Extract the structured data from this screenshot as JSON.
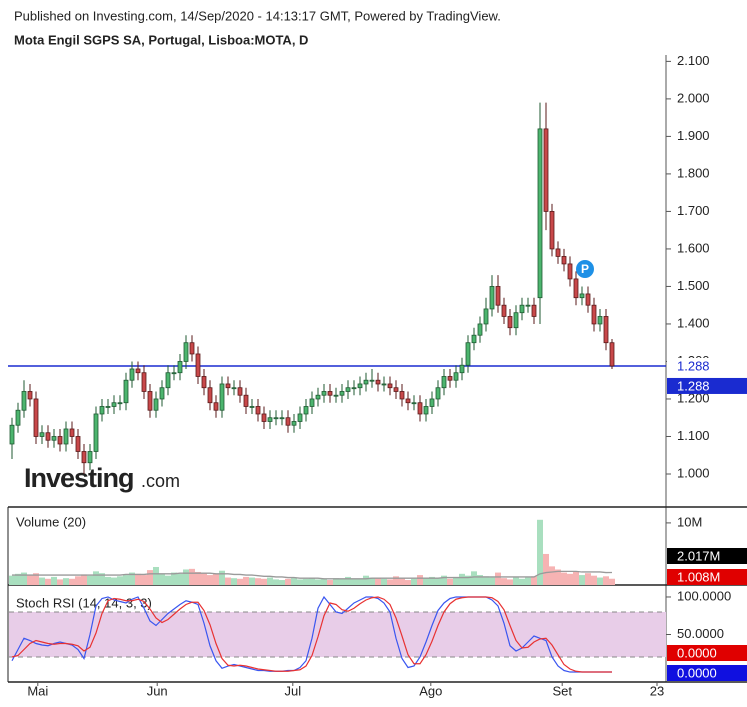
{
  "header": {
    "published": "Published on Investing.com, 14/Sep/2020 - 14:13:17 GMT, Powered by TradingView."
  },
  "logo": {
    "brand": "Investing",
    "suffix": ".com"
  },
  "chart_data": [
    {
      "type": "candlestick",
      "title": "Mota Engil SGPS SA, Portugal, Lisboa:MOTA, D",
      "event_marker": "P",
      "colors": {
        "up": "#4cb56e",
        "up_edge": "#1f5a32",
        "down": "#c8484a",
        "down_edge": "#5a1a1a",
        "price_line": "#1a2bd0"
      },
      "ylim": [
        0.912,
        2.117
      ],
      "yticks": [
        {
          "value": 1,
          "label": "1.000"
        },
        {
          "value": 1.1,
          "label": "1.100"
        },
        {
          "value": 1.2,
          "label": "1.200"
        },
        {
          "value": 1.3,
          "label": "1.300"
        },
        {
          "value": 1.4,
          "label": "1.400"
        },
        {
          "value": 1.5,
          "label": "1.500"
        },
        {
          "value": 1.6,
          "label": "1.600"
        },
        {
          "value": 1.7,
          "label": "1.700"
        },
        {
          "value": 1.8,
          "label": "1.800"
        },
        {
          "value": 1.9,
          "label": "1.900"
        },
        {
          "value": 2,
          "label": "2.000"
        },
        {
          "value": 2.1,
          "label": "2.100"
        }
      ],
      "price_line": 1.288,
      "open": [
        1.08,
        1.13,
        1.17,
        1.22,
        1.2,
        1.1,
        1.11,
        1.09,
        1.1,
        1.08,
        1.12,
        1.1,
        1.06,
        1.03,
        1.06,
        1.16,
        1.18,
        1.18,
        1.19,
        1.19,
        1.25,
        1.28,
        1.27,
        1.22,
        1.17,
        1.2,
        1.23,
        1.27,
        1.27,
        1.3,
        1.35,
        1.32,
        1.26,
        1.23,
        1.19,
        1.17,
        1.24,
        1.23,
        1.23,
        1.21,
        1.18,
        1.18,
        1.16,
        1.14,
        1.15,
        1.15,
        1.15,
        1.13,
        1.14,
        1.16,
        1.18,
        1.2,
        1.21,
        1.22,
        1.21,
        1.21,
        1.22,
        1.23,
        1.23,
        1.24,
        1.25,
        1.25,
        1.24,
        1.24,
        1.23,
        1.22,
        1.2,
        1.19,
        1.19,
        1.16,
        1.18,
        1.2,
        1.23,
        1.26,
        1.25,
        1.27,
        1.29,
        1.35,
        1.37,
        1.4,
        1.44,
        1.5,
        1.45,
        1.42,
        1.39,
        1.43,
        1.45,
        1.45,
        1.47,
        1.92,
        1.7,
        1.6,
        1.58,
        1.56,
        1.52,
        1.47,
        1.48,
        1.45,
        1.4,
        1.42,
        1.35
      ],
      "high": [
        1.15,
        1.19,
        1.25,
        1.24,
        1.22,
        1.13,
        1.13,
        1.12,
        1.12,
        1.14,
        1.14,
        1.12,
        1.08,
        1.08,
        1.18,
        1.2,
        1.2,
        1.21,
        1.21,
        1.27,
        1.3,
        1.3,
        1.29,
        1.24,
        1.22,
        1.25,
        1.29,
        1.29,
        1.32,
        1.37,
        1.37,
        1.34,
        1.28,
        1.25,
        1.21,
        1.26,
        1.26,
        1.25,
        1.25,
        1.23,
        1.2,
        1.2,
        1.18,
        1.17,
        1.17,
        1.17,
        1.17,
        1.16,
        1.18,
        1.2,
        1.22,
        1.23,
        1.24,
        1.24,
        1.23,
        1.24,
        1.25,
        1.25,
        1.26,
        1.27,
        1.28,
        1.27,
        1.26,
        1.26,
        1.25,
        1.24,
        1.22,
        1.21,
        1.21,
        1.2,
        1.22,
        1.25,
        1.28,
        1.28,
        1.29,
        1.31,
        1.37,
        1.39,
        1.42,
        1.47,
        1.53,
        1.53,
        1.47,
        1.44,
        1.45,
        1.47,
        1.47,
        1.47,
        1.99,
        1.99,
        1.72,
        1.62,
        1.6,
        1.58,
        1.54,
        1.5,
        1.5,
        1.47,
        1.44,
        1.44,
        1.36
      ],
      "low": [
        1.04,
        1.11,
        1.15,
        1.18,
        1.08,
        1.08,
        1.07,
        1.07,
        1.06,
        1.06,
        1.08,
        1.04,
        1.0,
        1.01,
        1.04,
        1.14,
        1.16,
        1.16,
        1.17,
        1.17,
        1.23,
        1.25,
        1.2,
        1.15,
        1.15,
        1.18,
        1.21,
        1.25,
        1.25,
        1.28,
        1.3,
        1.24,
        1.21,
        1.17,
        1.15,
        1.15,
        1.21,
        1.21,
        1.19,
        1.16,
        1.16,
        1.14,
        1.12,
        1.12,
        1.13,
        1.13,
        1.11,
        1.11,
        1.12,
        1.14,
        1.16,
        1.18,
        1.19,
        1.19,
        1.19,
        1.19,
        1.2,
        1.21,
        1.21,
        1.22,
        1.23,
        1.22,
        1.22,
        1.21,
        1.2,
        1.18,
        1.17,
        1.17,
        1.14,
        1.14,
        1.16,
        1.18,
        1.21,
        1.23,
        1.23,
        1.25,
        1.27,
        1.33,
        1.35,
        1.38,
        1.42,
        1.43,
        1.4,
        1.37,
        1.37,
        1.41,
        1.43,
        1.4,
        1.4,
        1.65,
        1.58,
        1.56,
        1.54,
        1.5,
        1.45,
        1.45,
        1.43,
        1.38,
        1.38,
        1.33,
        1.28
      ],
      "close": [
        1.13,
        1.17,
        1.22,
        1.2,
        1.1,
        1.11,
        1.09,
        1.1,
        1.08,
        1.12,
        1.1,
        1.06,
        1.03,
        1.06,
        1.16,
        1.18,
        1.18,
        1.19,
        1.19,
        1.25,
        1.28,
        1.27,
        1.22,
        1.17,
        1.2,
        1.23,
        1.27,
        1.27,
        1.3,
        1.35,
        1.32,
        1.26,
        1.23,
        1.19,
        1.17,
        1.24,
        1.23,
        1.23,
        1.21,
        1.18,
        1.18,
        1.16,
        1.14,
        1.15,
        1.15,
        1.15,
        1.13,
        1.14,
        1.16,
        1.18,
        1.2,
        1.21,
        1.22,
        1.21,
        1.21,
        1.22,
        1.23,
        1.23,
        1.24,
        1.25,
        1.25,
        1.24,
        1.24,
        1.23,
        1.22,
        1.2,
        1.19,
        1.19,
        1.16,
        1.18,
        1.2,
        1.23,
        1.26,
        1.25,
        1.27,
        1.29,
        1.35,
        1.37,
        1.4,
        1.44,
        1.5,
        1.45,
        1.42,
        1.39,
        1.43,
        1.45,
        1.45,
        1.42,
        1.92,
        1.7,
        1.6,
        1.58,
        1.56,
        1.52,
        1.47,
        1.48,
        1.45,
        1.4,
        1.42,
        1.35,
        1.288
      ]
    },
    {
      "type": "bar",
      "title": "Volume (20)",
      "colors": {
        "up": "#a9dfbf",
        "down": "#f6b3b3",
        "ma": "#9a9a9a"
      },
      "ylim": [
        0,
        12.4
      ],
      "yticks": [
        {
          "value": 10,
          "label": "10M"
        }
      ],
      "values": [
        1.5,
        1.8,
        2.0,
        1.6,
        1.9,
        1.2,
        1.0,
        1.3,
        0.9,
        1.1,
        1.0,
        1.4,
        1.7,
        1.5,
        2.2,
        1.9,
        1.3,
        1.2,
        1.4,
        1.6,
        2.0,
        1.8,
        1.6,
        2.4,
        2.9,
        1.7,
        1.5,
        2.0,
        1.8,
        2.5,
        2.6,
        2.1,
        1.9,
        1.6,
        1.8,
        2.3,
        1.2,
        1.1,
        1.0,
        1.3,
        1.2,
        1.1,
        1.0,
        1.2,
        0.9,
        0.8,
        1.0,
        1.1,
        0.9,
        1.0,
        1.2,
        0.9,
        1.0,
        0.8,
        1.1,
        1.0,
        1.3,
        0.9,
        1.0,
        1.5,
        1.2,
        1.1,
        1.0,
        0.9,
        1.4,
        1.2,
        0.8,
        1.0,
        1.6,
        1.1,
        1.3,
        1.2,
        1.5,
        1.0,
        1.3,
        1.8,
        1.5,
        2.2,
        1.6,
        1.4,
        1.2,
        2.0,
        1.1,
        0.9,
        1.3,
        1.0,
        1.2,
        1.4,
        10.5,
        5.0,
        3.0,
        2.5,
        2.0,
        1.8,
        2.2,
        1.6,
        1.9,
        1.5,
        1.2,
        1.4,
        1.008
      ],
      "ma": [
        1.6,
        1.6,
        1.6,
        1.6,
        1.6,
        1.6,
        1.6,
        1.6,
        1.6,
        1.6,
        1.6,
        1.6,
        1.6,
        1.6,
        1.6,
        1.6,
        1.6,
        1.6,
        1.6,
        1.7,
        1.7,
        1.7,
        1.7,
        1.8,
        1.8,
        1.8,
        1.8,
        1.8,
        1.9,
        1.9,
        1.9,
        1.9,
        1.9,
        1.9,
        1.8,
        1.8,
        1.8,
        1.7,
        1.7,
        1.6,
        1.6,
        1.5,
        1.4,
        1.4,
        1.3,
        1.3,
        1.2,
        1.2,
        1.1,
        1.1,
        1.1,
        1.1,
        1.0,
        1.0,
        1.0,
        1.0,
        1.0,
        1.0,
        1.0,
        1.0,
        1.1,
        1.1,
        1.1,
        1.1,
        1.1,
        1.1,
        1.1,
        1.1,
        1.1,
        1.1,
        1.1,
        1.1,
        1.2,
        1.2,
        1.2,
        1.2,
        1.2,
        1.3,
        1.3,
        1.3,
        1.3,
        1.3,
        1.3,
        1.3,
        1.3,
        1.3,
        1.3,
        1.3,
        1.8,
        2.0,
        2.1,
        2.2,
        2.2,
        2.2,
        2.2,
        2.1,
        2.1,
        2.1,
        2.1,
        2.0,
        2.017
      ],
      "badges": [
        {
          "value": 2.017,
          "label": "2.017M",
          "color": "#000000"
        },
        {
          "value": 1.008,
          "label": "1.008M",
          "color": "#e00000"
        }
      ]
    },
    {
      "type": "line",
      "title": "Stoch RSI (14, 14, 3, 3)",
      "ylim": [
        -13.3,
        113.3
      ],
      "yticks": [
        {
          "value": 100,
          "label": "100.0000"
        },
        {
          "value": 50,
          "label": "50.0000"
        }
      ],
      "band": [
        20,
        80
      ],
      "band_color": "#e8cde8",
      "xticks": [
        {
          "value": 4.3,
          "label": "Mai"
        },
        {
          "value": 24.2,
          "label": "Jun"
        },
        {
          "value": 46.8,
          "label": "Jul"
        },
        {
          "value": 69.8,
          "label": "Ago"
        },
        {
          "value": 91.7,
          "label": "Set"
        },
        {
          "value": 107.5,
          "label": "23"
        }
      ],
      "series": [
        {
          "color": "#3a56f0",
          "values": [
            15,
            30,
            45,
            42,
            38,
            36,
            35,
            38,
            40,
            38,
            36,
            30,
            18,
            50,
            88,
            98,
            100,
            96,
            94,
            92,
            97,
            100,
            85,
            68,
            62,
            70,
            78,
            84,
            90,
            95,
            93,
            90,
            65,
            35,
            15,
            5,
            8,
            10,
            8,
            6,
            4,
            2,
            2,
            1,
            1,
            1,
            2,
            2,
            6,
            15,
            45,
            85,
            100,
            90,
            80,
            78,
            85,
            92,
            96,
            100,
            100,
            98,
            92,
            80,
            45,
            18,
            6,
            8,
            20,
            40,
            62,
            82,
            92,
            98,
            100,
            100,
            100,
            100,
            100,
            100,
            96,
            88,
            65,
            35,
            28,
            32,
            40,
            48,
            45,
            42,
            20,
            8,
            2,
            0,
            0,
            0,
            0,
            0,
            0,
            0,
            0
          ]
        },
        {
          "color": "#e83232",
          "values": [
            20,
            22,
            30,
            38,
            42,
            40,
            38,
            37,
            38,
            38,
            37,
            35,
            28,
            33,
            52,
            78,
            95,
            98,
            97,
            95,
            95,
            97,
            94,
            84,
            72,
            66,
            70,
            77,
            84,
            90,
            93,
            93,
            82,
            63,
            38,
            18,
            9,
            8,
            9,
            8,
            6,
            4,
            3,
            2,
            1,
            1,
            1,
            2,
            3,
            8,
            22,
            47,
            75,
            92,
            90,
            83,
            81,
            85,
            91,
            96,
            99,
            100,
            97,
            90,
            72,
            48,
            23,
            11,
            11,
            23,
            41,
            62,
            80,
            91,
            97,
            99,
            100,
            100,
            100,
            100,
            99,
            94,
            83,
            62,
            42,
            32,
            33,
            40,
            44,
            45,
            36,
            23,
            10,
            4,
            1,
            0,
            0,
            0,
            0,
            0,
            0
          ]
        }
      ],
      "badges": [
        {
          "value": 0,
          "label": "0.0000",
          "color": "#e00000"
        },
        {
          "value": 0,
          "label": "0.0000",
          "color": "#1010e0"
        }
      ]
    }
  ]
}
